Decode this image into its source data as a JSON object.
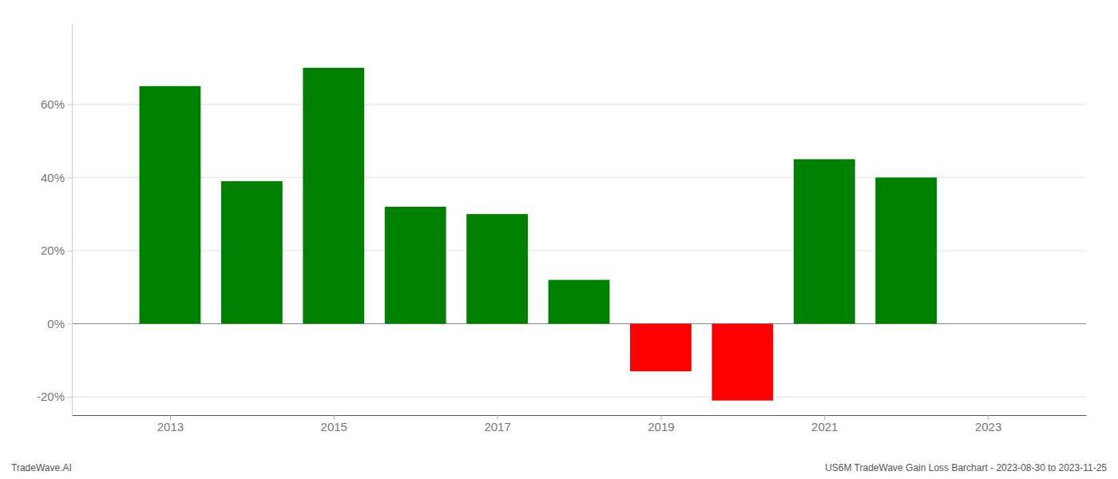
{
  "chart_data": {
    "type": "bar",
    "x": [
      2013,
      2014,
      2015,
      2016,
      2017,
      2018,
      2019,
      2020,
      2021,
      2022
    ],
    "values": [
      0.65,
      0.39,
      0.7,
      0.32,
      0.3,
      0.12,
      -0.13,
      -0.21,
      0.45,
      0.4
    ],
    "colors": [
      "#008000",
      "#008000",
      "#008000",
      "#008000",
      "#008000",
      "#008000",
      "#ff0000",
      "#ff0000",
      "#008000",
      "#008000"
    ],
    "xlim": [
      2011.8,
      2024.2
    ],
    "xticks": [
      2013,
      2015,
      2017,
      2019,
      2021,
      2023
    ],
    "ylim": [
      -0.25,
      0.82
    ],
    "yticks": [
      {
        "value": -0.2,
        "label": "-20%"
      },
      {
        "value": 0.0,
        "label": "0%"
      },
      {
        "value": 0.2,
        "label": "20%"
      },
      {
        "value": 0.4,
        "label": "40%"
      },
      {
        "value": 0.6,
        "label": "60%"
      }
    ],
    "grid": true,
    "annotations": [
      "TradeWave.AI",
      "US6M TradeWave Gain Loss Barchart - 2023-08-30 to 2023-11-25"
    ]
  }
}
